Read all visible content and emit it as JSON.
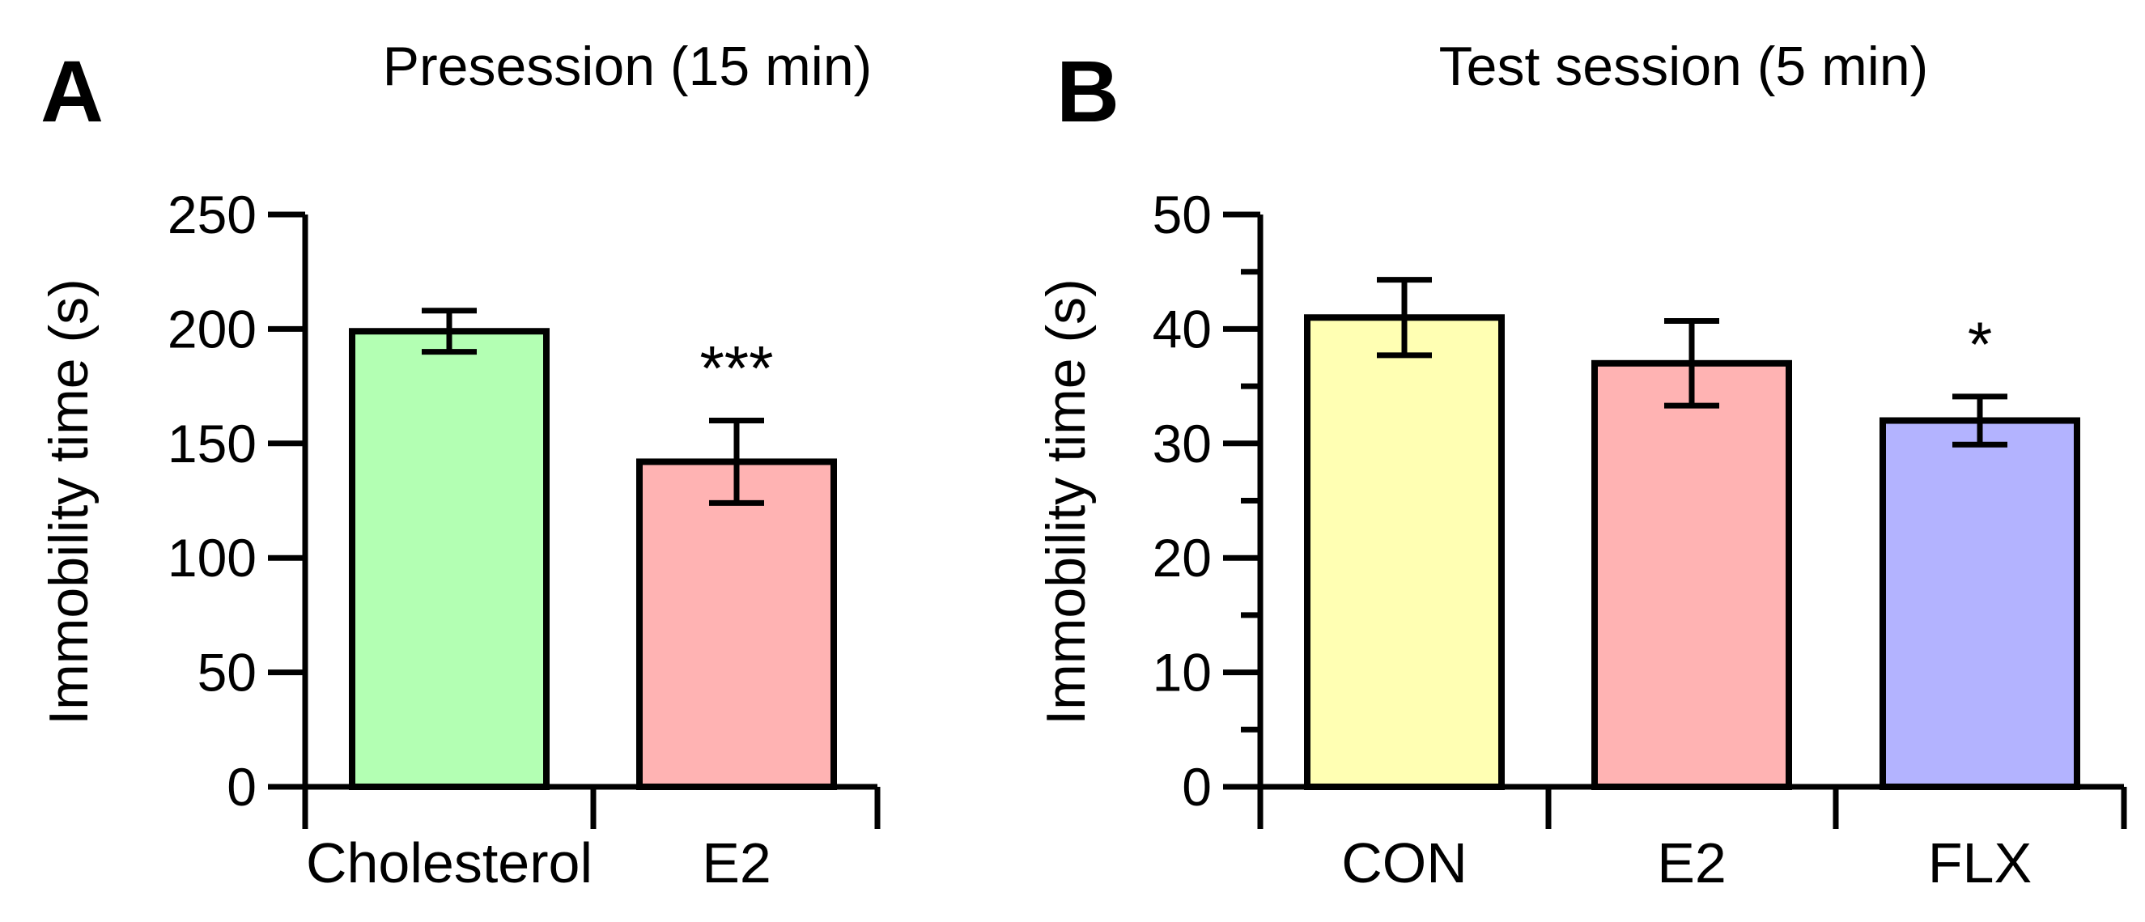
{
  "chart_data": [
    {
      "panel": "A",
      "type": "bar",
      "title": "Presession (15 min)",
      "ylabel": "Immobility time (s)",
      "xlabel": "",
      "ylim": [
        0,
        250
      ],
      "yticks": [
        0,
        50,
        100,
        150,
        200,
        250
      ],
      "categories": [
        "Cholesterol",
        "E2"
      ],
      "values": [
        199,
        142
      ],
      "errors": [
        9,
        18
      ],
      "colors": [
        "#b3ffb3",
        "#ffb3b3"
      ],
      "annotations": [
        "",
        "***"
      ]
    },
    {
      "panel": "B",
      "type": "bar",
      "title": "Test session (5 min)",
      "ylabel": "Immobility time (s)",
      "xlabel": "",
      "ylim": [
        0,
        50
      ],
      "yticks": [
        0,
        10,
        20,
        30,
        40,
        50
      ],
      "minor_ticks": [
        5,
        15,
        25,
        35,
        45
      ],
      "categories": [
        "CON",
        "E2",
        "FLX"
      ],
      "values": [
        41,
        37,
        32
      ],
      "errors": [
        3.3,
        3.7,
        2.1
      ],
      "colors": [
        "#ffffb3",
        "#ffb3b3",
        "#b3b3ff"
      ],
      "annotations": [
        "",
        "",
        "*"
      ]
    }
  ]
}
